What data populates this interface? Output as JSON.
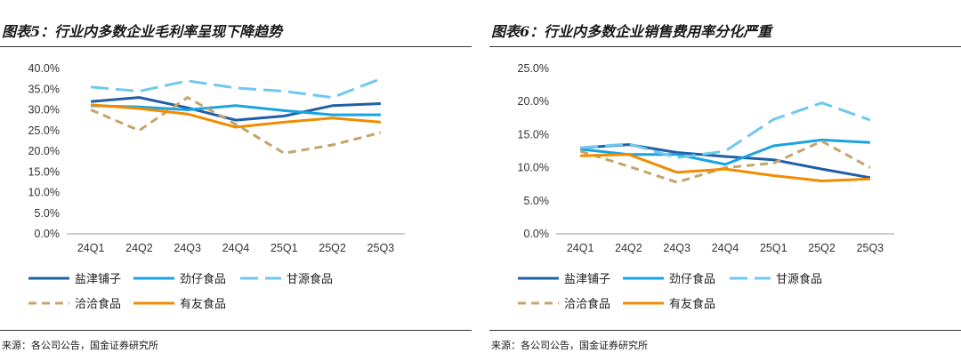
{
  "charts": [
    {
      "title": "图表5：行业内多数企业毛利率呈现下降趋势",
      "source": "来源：各公司公告，国金证券研究所"
    },
    {
      "title": "图表6：行业内多数企业销售费用率分化严重",
      "source": "来源：各公司公告，国金证券研究所"
    }
  ],
  "chart_data": [
    {
      "type": "line",
      "title": "图表5：行业内多数企业毛利率呈现下降趋势",
      "xlabel": "",
      "ylabel": "",
      "categories": [
        "24Q1",
        "24Q2",
        "24Q3",
        "24Q4",
        "25Q1",
        "25Q2",
        "25Q3"
      ],
      "ylim": [
        0,
        40
      ],
      "yticks": [
        "0.0%",
        "5.0%",
        "10.0%",
        "15.0%",
        "20.0%",
        "25.0%",
        "30.0%",
        "35.0%",
        "40.0%"
      ],
      "legend_position": "bottom",
      "series": [
        {
          "name": "盐津铺子",
          "color": "#1f5fa8",
          "dash": "solid",
          "values": [
            32.0,
            33.0,
            30.5,
            27.5,
            28.5,
            31.0,
            31.5
          ]
        },
        {
          "name": "劲仔食品",
          "color": "#1aa3e0",
          "dash": "solid",
          "values": [
            31.0,
            30.7,
            30.0,
            31.0,
            29.8,
            28.8,
            28.8
          ]
        },
        {
          "name": "甘源食品",
          "color": "#6ec8f0",
          "dash": "longdash",
          "values": [
            35.5,
            34.5,
            37.0,
            35.3,
            34.5,
            33.0,
            37.5
          ]
        },
        {
          "name": "洽洽食品",
          "color": "#c4a46a",
          "dash": "dash",
          "values": [
            30.0,
            25.0,
            33.0,
            26.5,
            19.5,
            21.5,
            24.5
          ]
        },
        {
          "name": "有友食品",
          "color": "#f08c00",
          "dash": "solid",
          "values": [
            31.2,
            30.3,
            29.0,
            25.8,
            27.0,
            28.0,
            27.0
          ]
        }
      ]
    },
    {
      "type": "line",
      "title": "图表6：行业内多数企业销售费用率分化严重",
      "xlabel": "",
      "ylabel": "",
      "categories": [
        "24Q1",
        "24Q2",
        "24Q3",
        "24Q4",
        "25Q1",
        "25Q2",
        "25Q3"
      ],
      "ylim": [
        0,
        25
      ],
      "yticks": [
        "0.0%",
        "5.0%",
        "10.0%",
        "15.0%",
        "20.0%",
        "25.0%"
      ],
      "legend_position": "bottom",
      "series": [
        {
          "name": "盐津铺子",
          "color": "#1f5fa8",
          "dash": "solid",
          "values": [
            13.0,
            13.5,
            12.3,
            11.7,
            11.2,
            9.8,
            8.5
          ]
        },
        {
          "name": "劲仔食品",
          "color": "#1aa3e0",
          "dash": "solid",
          "values": [
            12.8,
            12.0,
            12.0,
            10.5,
            13.3,
            14.2,
            13.8
          ]
        },
        {
          "name": "甘源食品",
          "color": "#6ec8f0",
          "dash": "longdash",
          "values": [
            13.0,
            13.6,
            11.5,
            12.5,
            17.3,
            19.8,
            17.2
          ]
        },
        {
          "name": "洽洽食品",
          "color": "#c4a46a",
          "dash": "dash",
          "values": [
            12.5,
            10.2,
            7.8,
            10.0,
            10.7,
            14.0,
            10.0
          ]
        },
        {
          "name": "有友食品",
          "color": "#f08c00",
          "dash": "solid",
          "values": [
            11.8,
            12.0,
            9.3,
            9.8,
            8.8,
            8.0,
            8.3
          ]
        }
      ]
    }
  ]
}
